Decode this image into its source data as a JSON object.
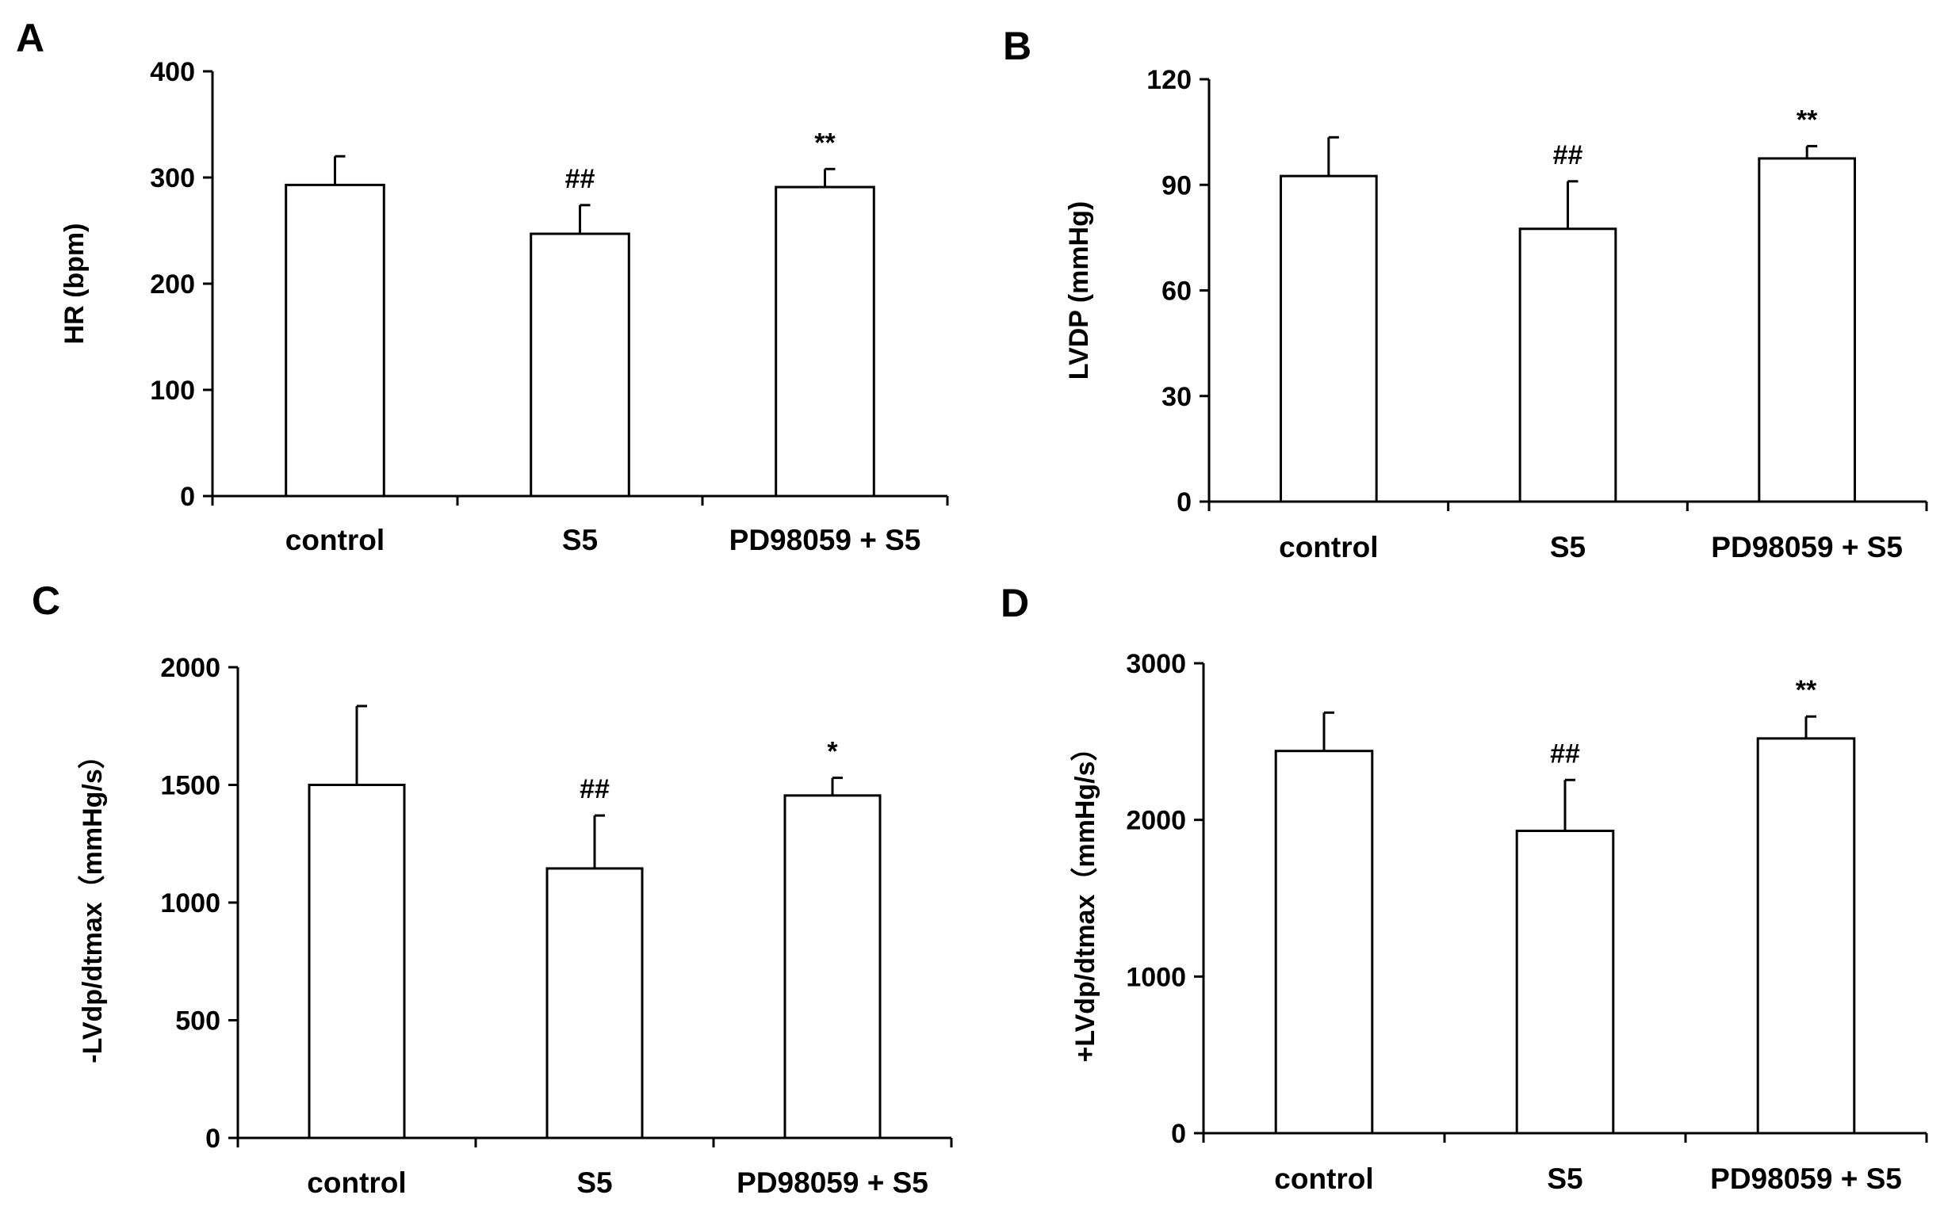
{
  "chart_data": [
    {
      "panel": "A",
      "type": "bar",
      "categories": [
        "control",
        "S5",
        "PD98059 + S5"
      ],
      "values": [
        293,
        247,
        291
      ],
      "errors": [
        27,
        27,
        17
      ],
      "annotations": [
        "",
        "##",
        "**"
      ],
      "ylabel": "HR (bpm)",
      "xlabel": "",
      "ylim": [
        0,
        400
      ],
      "yticks": [
        0,
        100,
        200,
        300,
        400
      ],
      "grid": false
    },
    {
      "panel": "B",
      "type": "bar",
      "categories": [
        "control",
        "S5",
        "PD98059 + S5"
      ],
      "values": [
        92.5,
        77.5,
        97.5
      ],
      "errors": [
        11,
        13.5,
        3.5
      ],
      "annotations": [
        "",
        "##",
        "**"
      ],
      "ylabel": "LVDP (mmHg)",
      "xlabel": "",
      "ylim": [
        0,
        120
      ],
      "yticks": [
        0,
        30,
        60,
        90,
        120
      ],
      "grid": false
    },
    {
      "panel": "C",
      "type": "bar",
      "categories": [
        "control",
        "S5",
        "PD98059 + S5"
      ],
      "values": [
        1500,
        1145,
        1455
      ],
      "errors": [
        335,
        225,
        75
      ],
      "annotations": [
        "",
        "##",
        "*"
      ],
      "ylabel": "-LVdp/dtmax（mmHg/s）",
      "xlabel": "",
      "ylim": [
        0,
        2000
      ],
      "yticks": [
        0,
        500,
        1000,
        1500,
        2000
      ],
      "grid": false
    },
    {
      "panel": "D",
      "type": "bar",
      "categories": [
        "control",
        "S5",
        "PD98059 + S5"
      ],
      "values": [
        2440,
        1930,
        2520
      ],
      "errors": [
        245,
        325,
        140
      ],
      "annotations": [
        "",
        "##",
        "**"
      ],
      "ylabel": "+LVdp/dtmax（mmHg/s）",
      "xlabel": "",
      "ylim": [
        0,
        3000
      ],
      "yticks": [
        0,
        1000,
        2000,
        3000
      ],
      "grid": false
    }
  ]
}
